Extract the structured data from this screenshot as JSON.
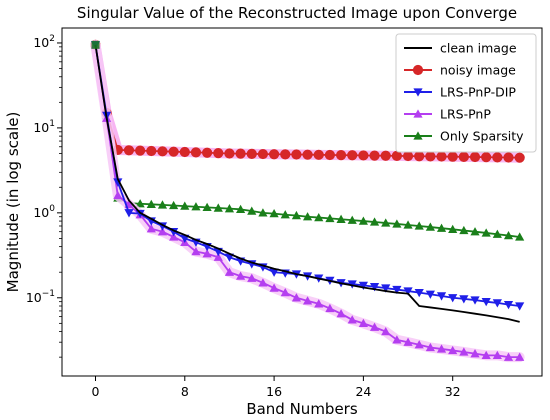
{
  "chart_data": {
    "type": "line",
    "title": "Singular Value of the Reconstructed Image upon Converge",
    "xlabel": "Band Numbers",
    "ylabel": "Magnitude (in log scale)",
    "xlim": [
      -3,
      40
    ],
    "ylim": [
      0.012,
      150
    ],
    "yscale": "log",
    "xticks": [
      0,
      8,
      16,
      24,
      32
    ],
    "yticks": [
      {
        "value": 0.1,
        "base": "10",
        "exp": "−1"
      },
      {
        "value": 1,
        "base": "10",
        "exp": "0"
      },
      {
        "value": 10,
        "base": "10",
        "exp": "1"
      },
      {
        "value": 100,
        "base": "10",
        "exp": "2"
      }
    ],
    "grid": false,
    "legend_position": "top-right",
    "x": [
      0,
      1,
      2,
      3,
      4,
      5,
      6,
      7,
      8,
      9,
      10,
      11,
      12,
      13,
      14,
      15,
      16,
      17,
      18,
      19,
      20,
      21,
      22,
      23,
      24,
      25,
      26,
      27,
      28,
      29,
      30,
      31,
      32,
      33,
      34,
      35,
      36,
      37,
      38
    ],
    "series": [
      {
        "name": "clean image",
        "color": "#000000",
        "marker": "none",
        "values": [
          95,
          13,
          2.5,
          1.4,
          1.0,
          0.85,
          0.72,
          0.62,
          0.55,
          0.48,
          0.43,
          0.38,
          0.33,
          0.29,
          0.26,
          0.24,
          0.22,
          0.205,
          0.19,
          0.18,
          0.168,
          0.158,
          0.148,
          0.14,
          0.132,
          0.126,
          0.12,
          0.115,
          0.112,
          0.08,
          0.077,
          0.074,
          0.071,
          0.068,
          0.065,
          0.062,
          0.059,
          0.056,
          0.052
        ]
      },
      {
        "name": "noisy image",
        "color": "#d62728",
        "marker": "circle",
        "values": [
          95,
          15,
          5.5,
          5.45,
          5.4,
          5.35,
          5.3,
          5.25,
          5.2,
          5.15,
          5.1,
          5.05,
          5.0,
          4.98,
          4.95,
          4.92,
          4.9,
          4.88,
          4.86,
          4.84,
          4.82,
          4.8,
          4.78,
          4.76,
          4.74,
          4.72,
          4.7,
          4.68,
          4.66,
          4.64,
          4.62,
          4.6,
          4.58,
          4.56,
          4.54,
          4.52,
          4.5,
          4.48,
          4.46
        ]
      },
      {
        "name": "LRS-PnP-DIP",
        "color": "#1f1fe8",
        "marker": "triangle-down",
        "values": [
          95,
          14,
          2.3,
          1.0,
          0.98,
          0.8,
          0.7,
          0.6,
          0.5,
          0.45,
          0.4,
          0.35,
          0.3,
          0.27,
          0.25,
          0.23,
          0.2,
          0.195,
          0.19,
          0.18,
          0.17,
          0.16,
          0.15,
          0.145,
          0.14,
          0.135,
          0.13,
          0.125,
          0.12,
          0.115,
          0.11,
          0.105,
          0.1,
          0.097,
          0.094,
          0.09,
          0.087,
          0.083,
          0.08
        ]
      },
      {
        "name": "LRS-PnP",
        "color": "#b43ef0",
        "marker": "triangle-up",
        "values": [
          95,
          13,
          1.6,
          1.25,
          0.95,
          0.65,
          0.6,
          0.52,
          0.45,
          0.35,
          0.33,
          0.3,
          0.2,
          0.18,
          0.17,
          0.15,
          0.13,
          0.115,
          0.1,
          0.092,
          0.085,
          0.075,
          0.065,
          0.055,
          0.05,
          0.045,
          0.04,
          0.032,
          0.03,
          0.028,
          0.026,
          0.025,
          0.024,
          0.023,
          0.022,
          0.021,
          0.021,
          0.02,
          0.02
        ]
      },
      {
        "name": "Only Sparsity",
        "color": "#1a7f1a",
        "marker": "triangle-up",
        "values": [
          95,
          14,
          1.5,
          1.3,
          1.28,
          1.26,
          1.24,
          1.22,
          1.2,
          1.18,
          1.16,
          1.14,
          1.12,
          1.1,
          1.05,
          1.0,
          0.98,
          0.95,
          0.93,
          0.9,
          0.88,
          0.86,
          0.84,
          0.82,
          0.8,
          0.78,
          0.76,
          0.74,
          0.72,
          0.7,
          0.68,
          0.66,
          0.64,
          0.62,
          0.6,
          0.58,
          0.56,
          0.54,
          0.52
        ]
      }
    ]
  }
}
